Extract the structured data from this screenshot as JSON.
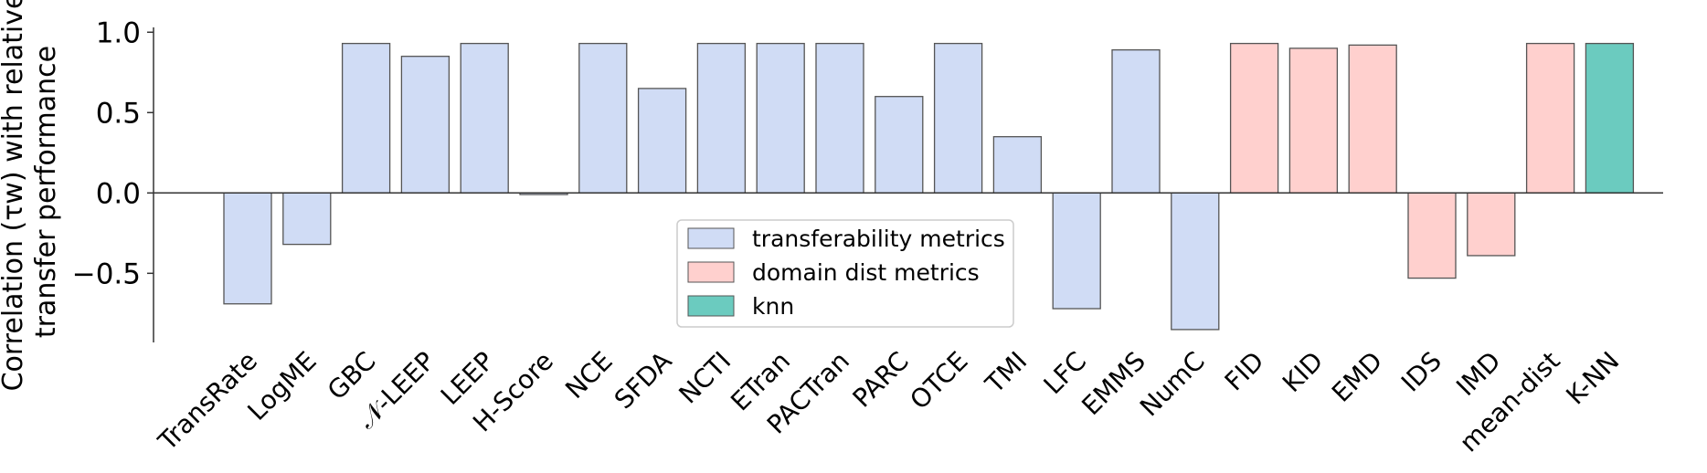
{
  "chart_data": {
    "type": "bar",
    "title": "",
    "xlabel": "",
    "ylabel_lines": [
      "Correlation (τw) with relative",
      "transfer performance"
    ],
    "ylim": [
      -0.93,
      1.03
    ],
    "yticks": [
      1.0,
      0.5,
      0.0,
      -0.5
    ],
    "ytick_labels": [
      "1.0",
      "0.5",
      "0.0",
      "−0.5"
    ],
    "grid": false,
    "legend_position": "bottom-center",
    "groups": [
      {
        "key": "transferability",
        "name": "transferability metrics",
        "color": "#d0dcf5"
      },
      {
        "key": "domain",
        "name": "domain dist metrics",
        "color": "#ffd0ce"
      },
      {
        "key": "knn",
        "name": "knn",
        "color": "#6bcbbf"
      }
    ],
    "categories": [
      "TransRate",
      "LogME",
      "GBC",
      "𝒩-LEEP",
      "LEEP",
      "H-Score",
      "NCE",
      "SFDA",
      "NCTI",
      "ETran",
      "PACTran",
      "PARC",
      "OTCE",
      "TMI",
      "LFC",
      "EMMS",
      "NumC",
      "FID",
      "KID",
      "EMD",
      "IDS",
      "IMD",
      "mean-dist",
      "K-NN"
    ],
    "values": [
      -0.69,
      -0.32,
      0.93,
      0.85,
      0.93,
      -0.01,
      0.93,
      0.65,
      0.93,
      0.93,
      0.93,
      0.6,
      0.93,
      0.35,
      -0.72,
      0.89,
      -0.85,
      0.93,
      0.9,
      0.92,
      -0.53,
      -0.39,
      0.93,
      0.93
    ],
    "bar_groups": [
      "transferability",
      "transferability",
      "transferability",
      "transferability",
      "transferability",
      "transferability",
      "transferability",
      "transferability",
      "transferability",
      "transferability",
      "transferability",
      "transferability",
      "transferability",
      "transferability",
      "transferability",
      "transferability",
      "transferability",
      "domain",
      "domain",
      "domain",
      "domain",
      "domain",
      "domain",
      "knn"
    ]
  }
}
